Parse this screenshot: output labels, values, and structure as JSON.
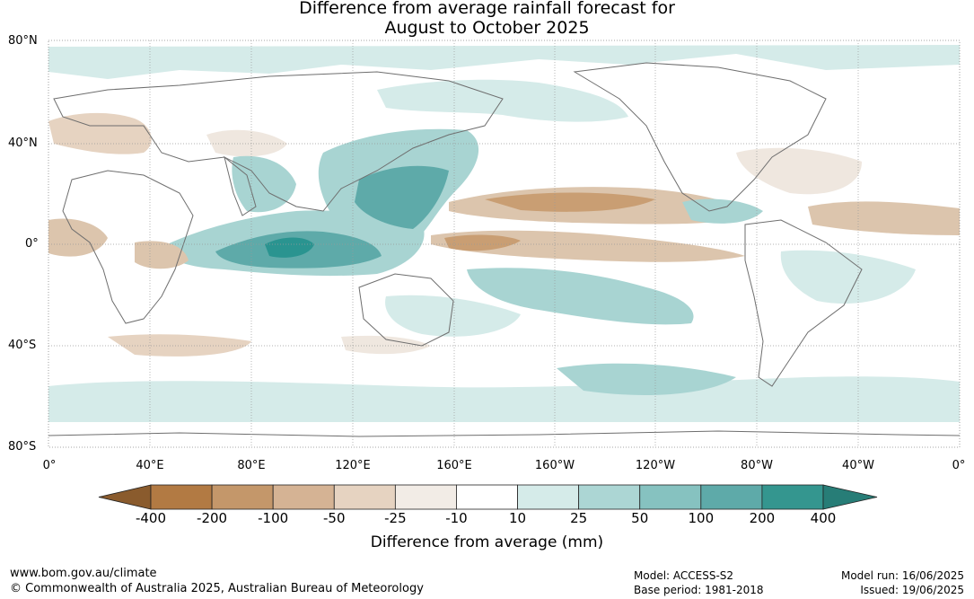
{
  "title": {
    "line1": "Difference from average rainfall forecast for",
    "line2": "August to October 2025"
  },
  "map": {
    "lat_labels": [
      "80°N",
      "40°N",
      "0°",
      "40°S",
      "80°S"
    ],
    "lon_labels": [
      "0°",
      "40°E",
      "80°E",
      "120°E",
      "160°E",
      "160°W",
      "120°W",
      "80°W",
      "40°W",
      "0°"
    ],
    "colors": {
      "wet_strong": "#2a9490",
      "wet_mid": "#5eaaa9",
      "wet_light": "#a8d4d2",
      "wet_faint": "#d5ebe9",
      "dry_faint": "#efe7df",
      "dry_light": "#dcc5ad",
      "dry_mid": "#c99e73",
      "dry_strong": "#b07b45",
      "coast": "#6e6e6e"
    }
  },
  "colorbar": {
    "ticks": [
      "-400",
      "-200",
      "-100",
      "-50",
      "-25",
      "-10",
      "10",
      "25",
      "50",
      "100",
      "200",
      "400"
    ],
    "colors": [
      "#8a5b2d",
      "#b27a43",
      "#c4976a",
      "#d5b394",
      "#e6d3c1",
      "#f2ece6",
      "#ffffff",
      "#d5ebe9",
      "#acd6d4",
      "#86c2c0",
      "#5eaaa9",
      "#34968f",
      "#277d77"
    ],
    "label": "Difference from average (mm)"
  },
  "footer": {
    "website": "www.bom.gov.au/climate",
    "copyright": "© Commonwealth of Australia 2025, Australian Bureau of Meteorology",
    "model": "Model: ACCESS-S2",
    "base_period": "Base period: 1981-2018",
    "model_run": "Model run: 16/06/2025",
    "issued": "Issued: 19/06/2025"
  }
}
